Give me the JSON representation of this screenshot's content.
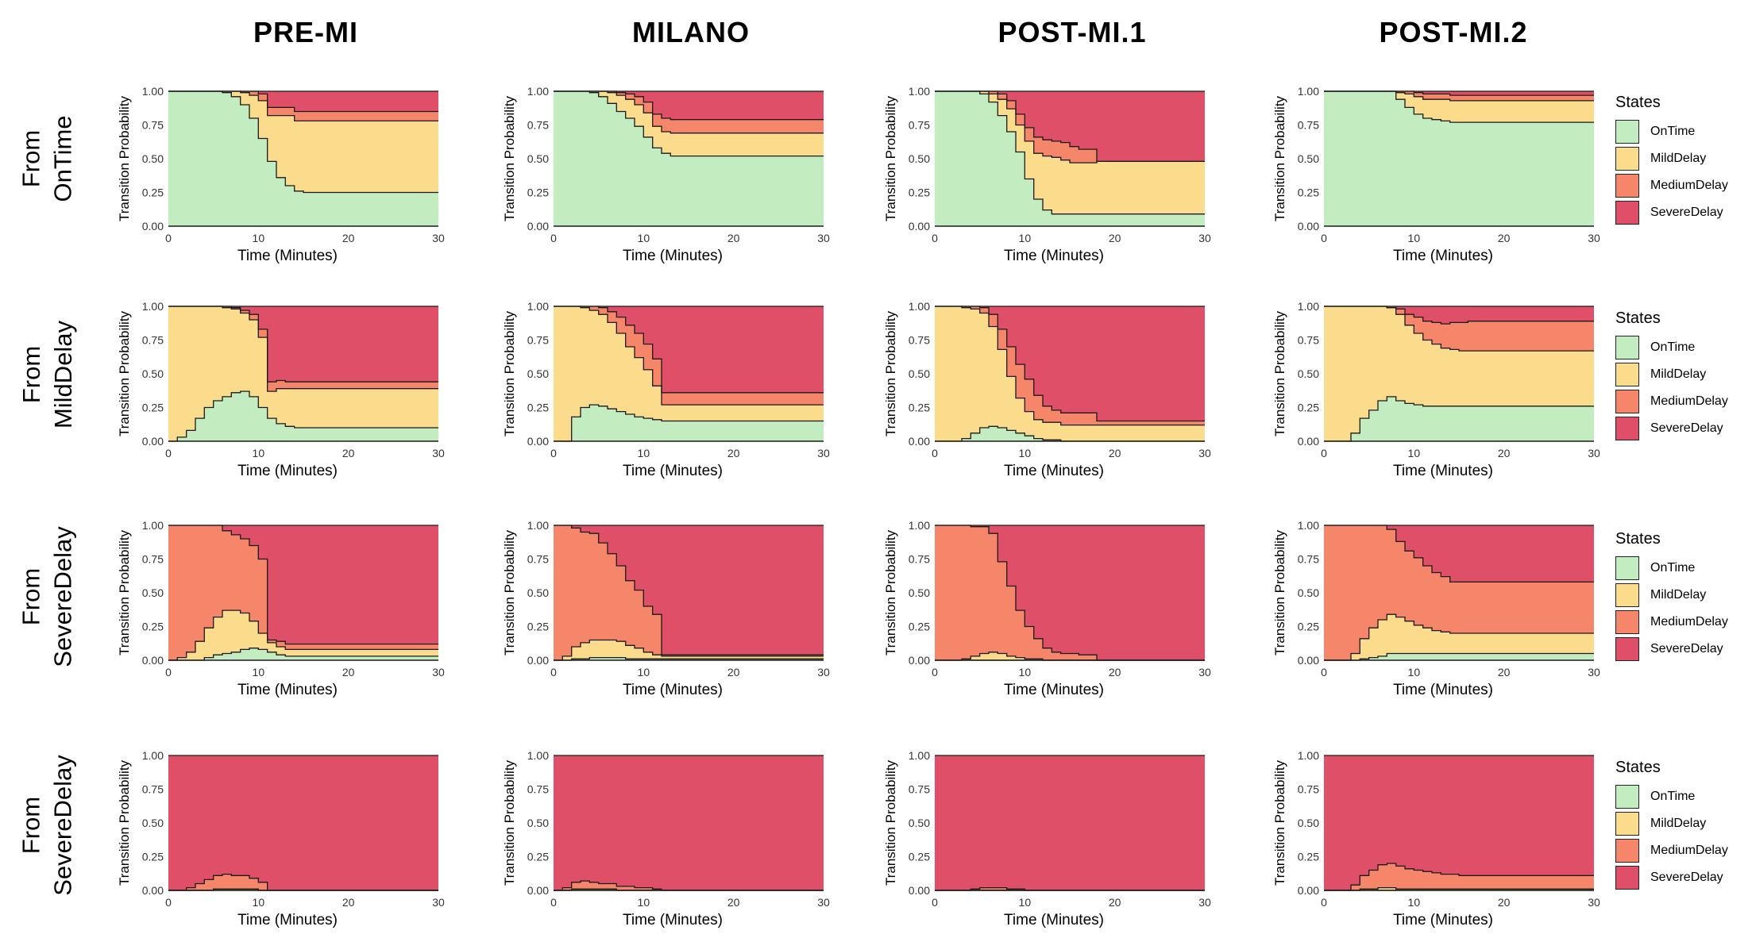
{
  "column_titles": [
    "PRE-MI",
    "MILANO",
    "POST-MI.1",
    "POST-MI.2"
  ],
  "row_labels": [
    {
      "line1": "From",
      "line2": "OnTime"
    },
    {
      "line1": "From",
      "line2": "MildDelay"
    },
    {
      "line1": "From",
      "line2": "SevereDelay"
    },
    {
      "line1": "From",
      "line2": "SevereDelay"
    }
  ],
  "legend": {
    "title": "States",
    "items": [
      {
        "label": "OnTime",
        "color": "#c3ecc0"
      },
      {
        "label": "MildDelay",
        "color": "#fbdb8c"
      },
      {
        "label": "MediumDelay",
        "color": "#f5866a"
      },
      {
        "label": "SevereDelay",
        "color": "#df5068"
      }
    ]
  },
  "chart_data": {
    "type": "area",
    "stacked": true,
    "xlabel": "Time (Minutes)",
    "ylabel": "Transition Probability",
    "xlim": [
      0,
      30
    ],
    "ylim": [
      0,
      1
    ],
    "xticks": [
      0,
      10,
      20,
      30
    ],
    "yticks": [
      "0.00",
      "0.25",
      "0.50",
      "0.75",
      "1.00"
    ],
    "series_names": [
      "OnTime",
      "MildDelay",
      "MediumDelay",
      "SevereDelay"
    ],
    "x": [
      0,
      1,
      2,
      3,
      4,
      5,
      6,
      7,
      8,
      9,
      10,
      11,
      12,
      13,
      14,
      15,
      16,
      18,
      20,
      25,
      30
    ],
    "panels": [
      {
        "row": 0,
        "col": 0,
        "title": "PRE-MI",
        "from": "OnTime",
        "OnTime": [
          1,
          1,
          1,
          1,
          1,
          1,
          0.99,
          0.96,
          0.9,
          0.8,
          0.65,
          0.48,
          0.36,
          0.3,
          0.26,
          0.25,
          0.25,
          0.25,
          0.25,
          0.25,
          0.25
        ],
        "MildDelay": [
          0,
          0,
          0,
          0,
          0,
          0,
          0.01,
          0.04,
          0.09,
          0.17,
          0.28,
          0.34,
          0.46,
          0.52,
          0.52,
          0.53,
          0.53,
          0.53,
          0.53,
          0.53,
          0.53
        ],
        "MediumDelay": [
          0,
          0,
          0,
          0,
          0,
          0,
          0,
          0,
          0.01,
          0.03,
          0.05,
          0.06,
          0.06,
          0.06,
          0.07,
          0.07,
          0.07,
          0.07,
          0.07,
          0.07,
          0.07
        ]
      },
      {
        "row": 0,
        "col": 1,
        "title": "MILANO",
        "from": "OnTime",
        "OnTime": [
          1,
          1,
          1,
          1,
          0.99,
          0.96,
          0.91,
          0.85,
          0.8,
          0.74,
          0.66,
          0.58,
          0.54,
          0.52,
          0.52,
          0.52,
          0.52,
          0.52,
          0.52,
          0.52,
          0.52
        ],
        "MildDelay": [
          0,
          0,
          0,
          0,
          0.01,
          0.04,
          0.08,
          0.12,
          0.14,
          0.16,
          0.18,
          0.16,
          0.16,
          0.17,
          0.17,
          0.17,
          0.17,
          0.17,
          0.17,
          0.17,
          0.17
        ],
        "MediumDelay": [
          0,
          0,
          0,
          0,
          0,
          0,
          0.01,
          0.02,
          0.04,
          0.06,
          0.08,
          0.09,
          0.1,
          0.1,
          0.1,
          0.1,
          0.1,
          0.1,
          0.1,
          0.1,
          0.1
        ]
      },
      {
        "row": 0,
        "col": 2,
        "title": "POST-MI.1",
        "from": "OnTime",
        "OnTime": [
          1,
          1,
          1,
          1,
          1,
          0.98,
          0.92,
          0.82,
          0.7,
          0.55,
          0.35,
          0.2,
          0.12,
          0.09,
          0.09,
          0.09,
          0.09,
          0.09,
          0.09,
          0.09,
          0.09
        ],
        "MildDelay": [
          0,
          0,
          0,
          0,
          0,
          0.02,
          0.06,
          0.12,
          0.17,
          0.2,
          0.28,
          0.34,
          0.4,
          0.42,
          0.4,
          0.38,
          0.38,
          0.39,
          0.39,
          0.39,
          0.39
        ],
        "MediumDelay": [
          0,
          0,
          0,
          0,
          0,
          0,
          0.02,
          0.04,
          0.06,
          0.08,
          0.1,
          0.12,
          0.12,
          0.12,
          0.13,
          0.12,
          0.1,
          0,
          0,
          0,
          0
        ]
      },
      {
        "row": 0,
        "col": 3,
        "title": "POST-MI.2",
        "from": "OnTime",
        "OnTime": [
          1,
          1,
          1,
          1,
          1,
          1,
          1,
          1,
          0.94,
          0.88,
          0.83,
          0.8,
          0.79,
          0.78,
          0.77,
          0.77,
          0.77,
          0.77,
          0.77,
          0.77,
          0.77
        ],
        "MildDelay": [
          0,
          0,
          0,
          0,
          0,
          0,
          0,
          0,
          0.05,
          0.1,
          0.13,
          0.14,
          0.15,
          0.16,
          0.16,
          0.16,
          0.16,
          0.16,
          0.16,
          0.16,
          0.16
        ],
        "MediumDelay": [
          0,
          0,
          0,
          0,
          0,
          0,
          0,
          0,
          0.01,
          0.02,
          0.03,
          0.04,
          0.04,
          0.04,
          0.04,
          0.04,
          0.04,
          0.04,
          0.04,
          0.04,
          0.04
        ]
      },
      {
        "row": 1,
        "col": 0,
        "title": "PRE-MI",
        "from": "MildDelay",
        "OnTime": [
          0,
          0.03,
          0.08,
          0.17,
          0.25,
          0.3,
          0.33,
          0.36,
          0.37,
          0.33,
          0.25,
          0.17,
          0.13,
          0.11,
          0.1,
          0.1,
          0.1,
          0.1,
          0.1,
          0.1,
          0.1
        ],
        "MildDelay": [
          1,
          0.97,
          0.92,
          0.83,
          0.75,
          0.7,
          0.66,
          0.62,
          0.58,
          0.57,
          0.52,
          0.2,
          0.26,
          0.28,
          0.29,
          0.29,
          0.29,
          0.29,
          0.29,
          0.29,
          0.29
        ],
        "MediumDelay": [
          0,
          0,
          0,
          0,
          0,
          0,
          0.01,
          0.01,
          0.02,
          0.04,
          0.06,
          0.07,
          0.06,
          0.05,
          0.05,
          0.05,
          0.05,
          0.05,
          0.05,
          0.05,
          0.05
        ]
      },
      {
        "row": 1,
        "col": 1,
        "title": "MILANO",
        "from": "MildDelay",
        "OnTime": [
          0,
          0,
          0.18,
          0.25,
          0.27,
          0.26,
          0.24,
          0.22,
          0.2,
          0.18,
          0.17,
          0.16,
          0.15,
          0.15,
          0.15,
          0.15,
          0.15,
          0.15,
          0.15,
          0.15,
          0.15
        ],
        "MildDelay": [
          1,
          1,
          0.82,
          0.74,
          0.7,
          0.68,
          0.64,
          0.58,
          0.5,
          0.44,
          0.36,
          0.25,
          0.12,
          0.12,
          0.12,
          0.12,
          0.12,
          0.12,
          0.12,
          0.12,
          0.12
        ],
        "MediumDelay": [
          0,
          0,
          0,
          0.01,
          0.03,
          0.05,
          0.08,
          0.12,
          0.16,
          0.18,
          0.19,
          0.2,
          0.09,
          0.09,
          0.09,
          0.09,
          0.09,
          0.09,
          0.09,
          0.09,
          0.09
        ]
      },
      {
        "row": 1,
        "col": 2,
        "title": "POST-MI.1",
        "from": "MildDelay",
        "OnTime": [
          0,
          0,
          0,
          0.02,
          0.06,
          0.1,
          0.11,
          0.1,
          0.08,
          0.06,
          0.04,
          0.02,
          0.01,
          0.01,
          0,
          0,
          0,
          0,
          0,
          0,
          0
        ],
        "MildDelay": [
          1,
          1,
          1,
          0.97,
          0.92,
          0.85,
          0.74,
          0.58,
          0.4,
          0.26,
          0.18,
          0.14,
          0.13,
          0.13,
          0.12,
          0.12,
          0.12,
          0.12,
          0.12,
          0.12,
          0.12
        ],
        "MediumDelay": [
          0,
          0,
          0,
          0.01,
          0.02,
          0.04,
          0.09,
          0.15,
          0.22,
          0.25,
          0.24,
          0.18,
          0.12,
          0.09,
          0.09,
          0.09,
          0.09,
          0.03,
          0.03,
          0.03,
          0.03
        ]
      },
      {
        "row": 1,
        "col": 3,
        "title": "POST-MI.2",
        "from": "MildDelay",
        "OnTime": [
          0,
          0,
          0,
          0.06,
          0.17,
          0.23,
          0.3,
          0.33,
          0.3,
          0.28,
          0.27,
          0.26,
          0.26,
          0.26,
          0.26,
          0.26,
          0.26,
          0.26,
          0.26,
          0.26,
          0.26
        ],
        "MildDelay": [
          1,
          1,
          1,
          0.94,
          0.83,
          0.77,
          0.7,
          0.66,
          0.64,
          0.58,
          0.53,
          0.49,
          0.46,
          0.43,
          0.42,
          0.41,
          0.41,
          0.41,
          0.41,
          0.41,
          0.41
        ],
        "MediumDelay": [
          0,
          0,
          0,
          0,
          0,
          0,
          0,
          0,
          0.04,
          0.08,
          0.12,
          0.14,
          0.16,
          0.18,
          0.2,
          0.21,
          0.22,
          0.22,
          0.22,
          0.22,
          0.22
        ]
      },
      {
        "row": 2,
        "col": 0,
        "title": "PRE-MI",
        "from": "SevereDelay",
        "OnTime": [
          0,
          0,
          0,
          0,
          0.02,
          0.04,
          0.05,
          0.06,
          0.08,
          0.09,
          0.08,
          0.06,
          0.04,
          0.03,
          0.03,
          0.03,
          0.03,
          0.03,
          0.03,
          0.03,
          0.03
        ],
        "MildDelay": [
          0,
          0.02,
          0.06,
          0.14,
          0.22,
          0.28,
          0.32,
          0.31,
          0.27,
          0.2,
          0.12,
          0.07,
          0.06,
          0.05,
          0.05,
          0.05,
          0.05,
          0.05,
          0.05,
          0.05,
          0.05
        ],
        "MediumDelay": [
          1,
          0.98,
          0.94,
          0.86,
          0.76,
          0.68,
          0.59,
          0.56,
          0.55,
          0.56,
          0.55,
          0.02,
          0.04,
          0.04,
          0.04,
          0.04,
          0.04,
          0.04,
          0.04,
          0.04,
          0.04
        ]
      },
      {
        "row": 2,
        "col": 1,
        "title": "MILANO",
        "from": "SevereDelay",
        "OnTime": [
          0,
          0,
          0.01,
          0.01,
          0.02,
          0.02,
          0.02,
          0.02,
          0.01,
          0.01,
          0.01,
          0.01,
          0.01,
          0.01,
          0.01,
          0.01,
          0.01,
          0.01,
          0.01,
          0.01,
          0.01
        ],
        "MildDelay": [
          0,
          0.03,
          0.09,
          0.12,
          0.13,
          0.13,
          0.13,
          0.12,
          0.1,
          0.08,
          0.05,
          0.03,
          0.02,
          0.02,
          0.02,
          0.02,
          0.02,
          0.02,
          0.02,
          0.02,
          0.02
        ],
        "MediumDelay": [
          1,
          0.97,
          0.88,
          0.82,
          0.79,
          0.72,
          0.64,
          0.56,
          0.48,
          0.43,
          0.34,
          0.3,
          0.01,
          0.01,
          0.01,
          0.01,
          0.01,
          0.01,
          0.01,
          0.01,
          0.01
        ]
      },
      {
        "row": 2,
        "col": 2,
        "title": "POST-MI.1",
        "from": "SevereDelay",
        "OnTime": [
          0,
          0,
          0,
          0,
          0,
          0,
          0,
          0,
          0,
          0,
          0,
          0,
          0,
          0,
          0,
          0,
          0,
          0,
          0,
          0,
          0
        ],
        "MildDelay": [
          0,
          0,
          0,
          0.01,
          0.03,
          0.05,
          0.06,
          0.05,
          0.03,
          0.02,
          0.01,
          0.01,
          0,
          0,
          0,
          0,
          0,
          0,
          0,
          0,
          0
        ],
        "MediumDelay": [
          1,
          1,
          1,
          0.99,
          0.96,
          0.94,
          0.88,
          0.68,
          0.52,
          0.35,
          0.24,
          0.15,
          0.09,
          0.06,
          0.05,
          0.05,
          0.04,
          0,
          0,
          0,
          0
        ]
      },
      {
        "row": 2,
        "col": 3,
        "title": "POST-MI.2",
        "from": "SevereDelay",
        "OnTime": [
          0,
          0,
          0,
          0,
          0.01,
          0.02,
          0.03,
          0.05,
          0.05,
          0.05,
          0.05,
          0.05,
          0.05,
          0.05,
          0.05,
          0.05,
          0.05,
          0.05,
          0.05,
          0.05,
          0.05
        ],
        "MildDelay": [
          0,
          0,
          0,
          0.05,
          0.15,
          0.22,
          0.27,
          0.29,
          0.27,
          0.24,
          0.21,
          0.19,
          0.17,
          0.16,
          0.15,
          0.15,
          0.15,
          0.15,
          0.15,
          0.15,
          0.15
        ],
        "MediumDelay": [
          1,
          1,
          1,
          0.95,
          0.84,
          0.76,
          0.7,
          0.63,
          0.56,
          0.52,
          0.5,
          0.46,
          0.43,
          0.41,
          0.38,
          0.38,
          0.38,
          0.38,
          0.38,
          0.38,
          0.38
        ]
      },
      {
        "row": 3,
        "col": 0,
        "title": "PRE-MI",
        "from": "SevereDelay",
        "OnTime": [
          0,
          0,
          0,
          0,
          0,
          0,
          0,
          0,
          0,
          0,
          0,
          0,
          0,
          0,
          0,
          0,
          0,
          0,
          0,
          0,
          0
        ],
        "MildDelay": [
          0,
          0,
          0,
          0,
          0,
          0.01,
          0.01,
          0.01,
          0.01,
          0.01,
          0,
          0,
          0,
          0,
          0,
          0,
          0,
          0,
          0,
          0,
          0
        ],
        "MediumDelay": [
          0,
          0,
          0.02,
          0.05,
          0.08,
          0.1,
          0.11,
          0.1,
          0.1,
          0.08,
          0.06,
          0,
          0,
          0,
          0,
          0,
          0,
          0,
          0,
          0,
          0
        ]
      },
      {
        "row": 3,
        "col": 1,
        "title": "MILANO",
        "from": "SevereDelay",
        "OnTime": [
          0,
          0,
          0,
          0,
          0,
          0,
          0,
          0,
          0,
          0,
          0,
          0,
          0,
          0,
          0,
          0,
          0,
          0,
          0,
          0,
          0
        ],
        "MildDelay": [
          0,
          0,
          0.01,
          0.01,
          0.01,
          0.01,
          0.01,
          0,
          0,
          0,
          0,
          0,
          0,
          0,
          0,
          0,
          0,
          0,
          0,
          0,
          0
        ],
        "MediumDelay": [
          0,
          0.02,
          0.05,
          0.06,
          0.05,
          0.04,
          0.04,
          0.03,
          0.03,
          0.02,
          0.02,
          0.01,
          0,
          0,
          0,
          0,
          0,
          0,
          0,
          0,
          0
        ]
      },
      {
        "row": 3,
        "col": 2,
        "title": "POST-MI.1",
        "from": "SevereDelay",
        "OnTime": [
          0,
          0,
          0,
          0,
          0,
          0,
          0,
          0,
          0,
          0,
          0,
          0,
          0,
          0,
          0,
          0,
          0,
          0,
          0,
          0,
          0
        ],
        "MildDelay": [
          0,
          0,
          0,
          0,
          0,
          0,
          0,
          0,
          0,
          0,
          0,
          0,
          0,
          0,
          0,
          0,
          0,
          0,
          0,
          0,
          0
        ],
        "MediumDelay": [
          0,
          0,
          0,
          0,
          0.01,
          0.02,
          0.02,
          0.02,
          0.01,
          0.01,
          0,
          0,
          0,
          0,
          0,
          0,
          0,
          0,
          0,
          0,
          0
        ]
      },
      {
        "row": 3,
        "col": 3,
        "title": "POST-MI.2",
        "from": "SevereDelay",
        "OnTime": [
          0,
          0,
          0,
          0,
          0,
          0,
          0,
          0,
          0,
          0,
          0,
          0,
          0,
          0,
          0,
          0,
          0,
          0,
          0,
          0,
          0
        ],
        "MildDelay": [
          0,
          0,
          0,
          0,
          0.01,
          0.01,
          0.02,
          0.02,
          0.01,
          0.01,
          0.01,
          0.01,
          0.01,
          0.01,
          0.01,
          0.01,
          0.01,
          0.01,
          0.01,
          0.01,
          0.01
        ],
        "MediumDelay": [
          0,
          0,
          0,
          0.04,
          0.1,
          0.14,
          0.17,
          0.18,
          0.17,
          0.15,
          0.14,
          0.13,
          0.12,
          0.11,
          0.11,
          0.1,
          0.1,
          0.1,
          0.1,
          0.1,
          0.1
        ]
      }
    ]
  }
}
